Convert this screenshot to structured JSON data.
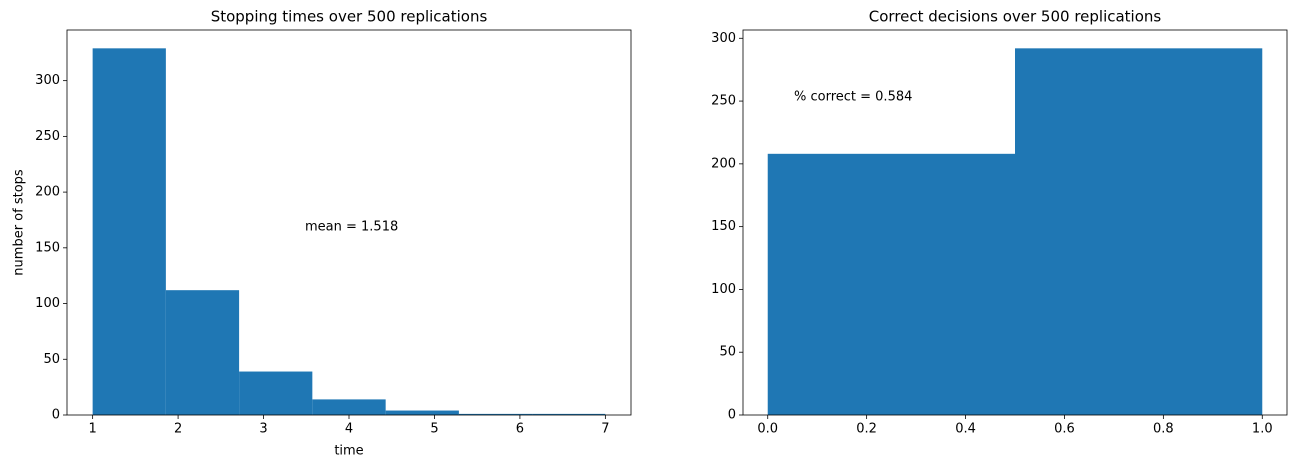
{
  "chart_data": [
    {
      "type": "histogram",
      "title": "Stopping times over 500 replications",
      "xlabel": "time",
      "ylabel": "number of stops",
      "bins": [
        1,
        1.857,
        2.714,
        3.571,
        4.429,
        5.286,
        6.143,
        7
      ],
      "values": [
        329,
        112,
        39,
        14,
        4,
        1,
        1
      ],
      "color": "#1f77b4",
      "xlim": [
        0.7,
        7.3
      ],
      "ylim": [
        0,
        345.45
      ],
      "xticks": [
        1,
        2,
        3,
        4,
        5,
        6,
        7
      ],
      "yticks": [
        0,
        50,
        100,
        150,
        200,
        250,
        300
      ],
      "annotation": "mean = 1.518"
    },
    {
      "type": "histogram",
      "title": "Correct decisions over 500 replications",
      "bins": [
        0,
        0.5,
        1
      ],
      "values": [
        208,
        292
      ],
      "color": "#1f77b4",
      "xlim": [
        -0.05,
        1.05
      ],
      "ylim": [
        0,
        306.6
      ],
      "xticks": [
        {
          "value": 0,
          "label": "0.0"
        },
        0.2,
        0.4,
        0.6,
        0.8,
        {
          "value": 1,
          "label": "1.0"
        }
      ],
      "yticks": [
        0,
        50,
        100,
        150,
        200,
        250,
        300
      ],
      "annotation": "% correct = 0.584"
    }
  ]
}
